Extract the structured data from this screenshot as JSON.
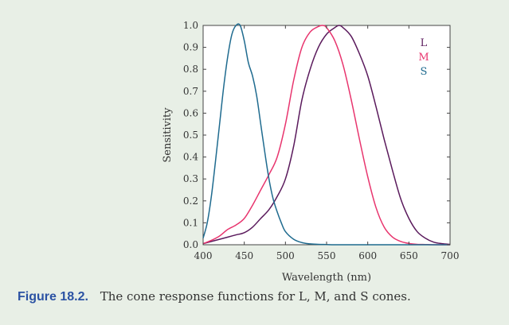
{
  "chart_data": {
    "type": "line",
    "xlabel": "Wavelength (nm)",
    "ylabel": "Sensitivity",
    "xlim": [
      400,
      700
    ],
    "ylim": [
      0,
      1
    ],
    "xticks": [
      400,
      450,
      500,
      550,
      600,
      650,
      700
    ],
    "yticks": [
      0.0,
      0.1,
      0.2,
      0.3,
      0.4,
      0.5,
      0.6,
      0.7,
      0.8,
      0.9,
      1.0
    ],
    "grid": false,
    "legend_position": "top-right",
    "series": [
      {
        "name": "L",
        "color": "#5a1a5c",
        "x": [
          400,
          410,
          420,
          430,
          440,
          450,
          460,
          470,
          480,
          490,
          500,
          510,
          520,
          530,
          540,
          550,
          560,
          565,
          570,
          580,
          590,
          600,
          610,
          620,
          630,
          640,
          650,
          660,
          670,
          680,
          690,
          700
        ],
        "y": [
          0.005,
          0.015,
          0.025,
          0.035,
          0.045,
          0.055,
          0.08,
          0.12,
          0.16,
          0.22,
          0.3,
          0.45,
          0.66,
          0.8,
          0.9,
          0.96,
          0.99,
          1.0,
          0.99,
          0.95,
          0.87,
          0.77,
          0.63,
          0.48,
          0.34,
          0.21,
          0.12,
          0.06,
          0.03,
          0.012,
          0.005,
          0.002
        ]
      },
      {
        "name": "M",
        "color": "#e8356e",
        "x": [
          400,
          410,
          420,
          430,
          440,
          450,
          460,
          470,
          480,
          490,
          500,
          510,
          520,
          530,
          540,
          545,
          550,
          560,
          570,
          580,
          590,
          600,
          610,
          620,
          630,
          640,
          650,
          660,
          670,
          680,
          690,
          700
        ],
        "y": [
          0.005,
          0.02,
          0.04,
          0.07,
          0.09,
          0.12,
          0.18,
          0.25,
          0.32,
          0.4,
          0.55,
          0.75,
          0.9,
          0.97,
          0.995,
          1.0,
          0.99,
          0.93,
          0.82,
          0.66,
          0.48,
          0.31,
          0.17,
          0.08,
          0.035,
          0.015,
          0.006,
          0.002,
          0.001,
          0.0,
          0.0,
          0.0
        ]
      },
      {
        "name": "S",
        "color": "#1f6b8f",
        "x": [
          400,
          405,
          410,
          415,
          420,
          425,
          430,
          435,
          440,
          445,
          450,
          455,
          460,
          465,
          470,
          475,
          480,
          485,
          490,
          495,
          500,
          510,
          520,
          530,
          540,
          550,
          560,
          580,
          600,
          650,
          700
        ],
        "y": [
          0.03,
          0.1,
          0.22,
          0.38,
          0.55,
          0.72,
          0.86,
          0.96,
          1.0,
          1.0,
          0.93,
          0.83,
          0.77,
          0.68,
          0.55,
          0.42,
          0.3,
          0.21,
          0.15,
          0.1,
          0.06,
          0.025,
          0.01,
          0.004,
          0.002,
          0.001,
          0.0,
          0.0,
          0.0,
          0.0,
          0.0
        ]
      }
    ]
  },
  "caption": {
    "label": "Figure 18.2.",
    "text": "The cone response functions for L, M, and S cones."
  }
}
